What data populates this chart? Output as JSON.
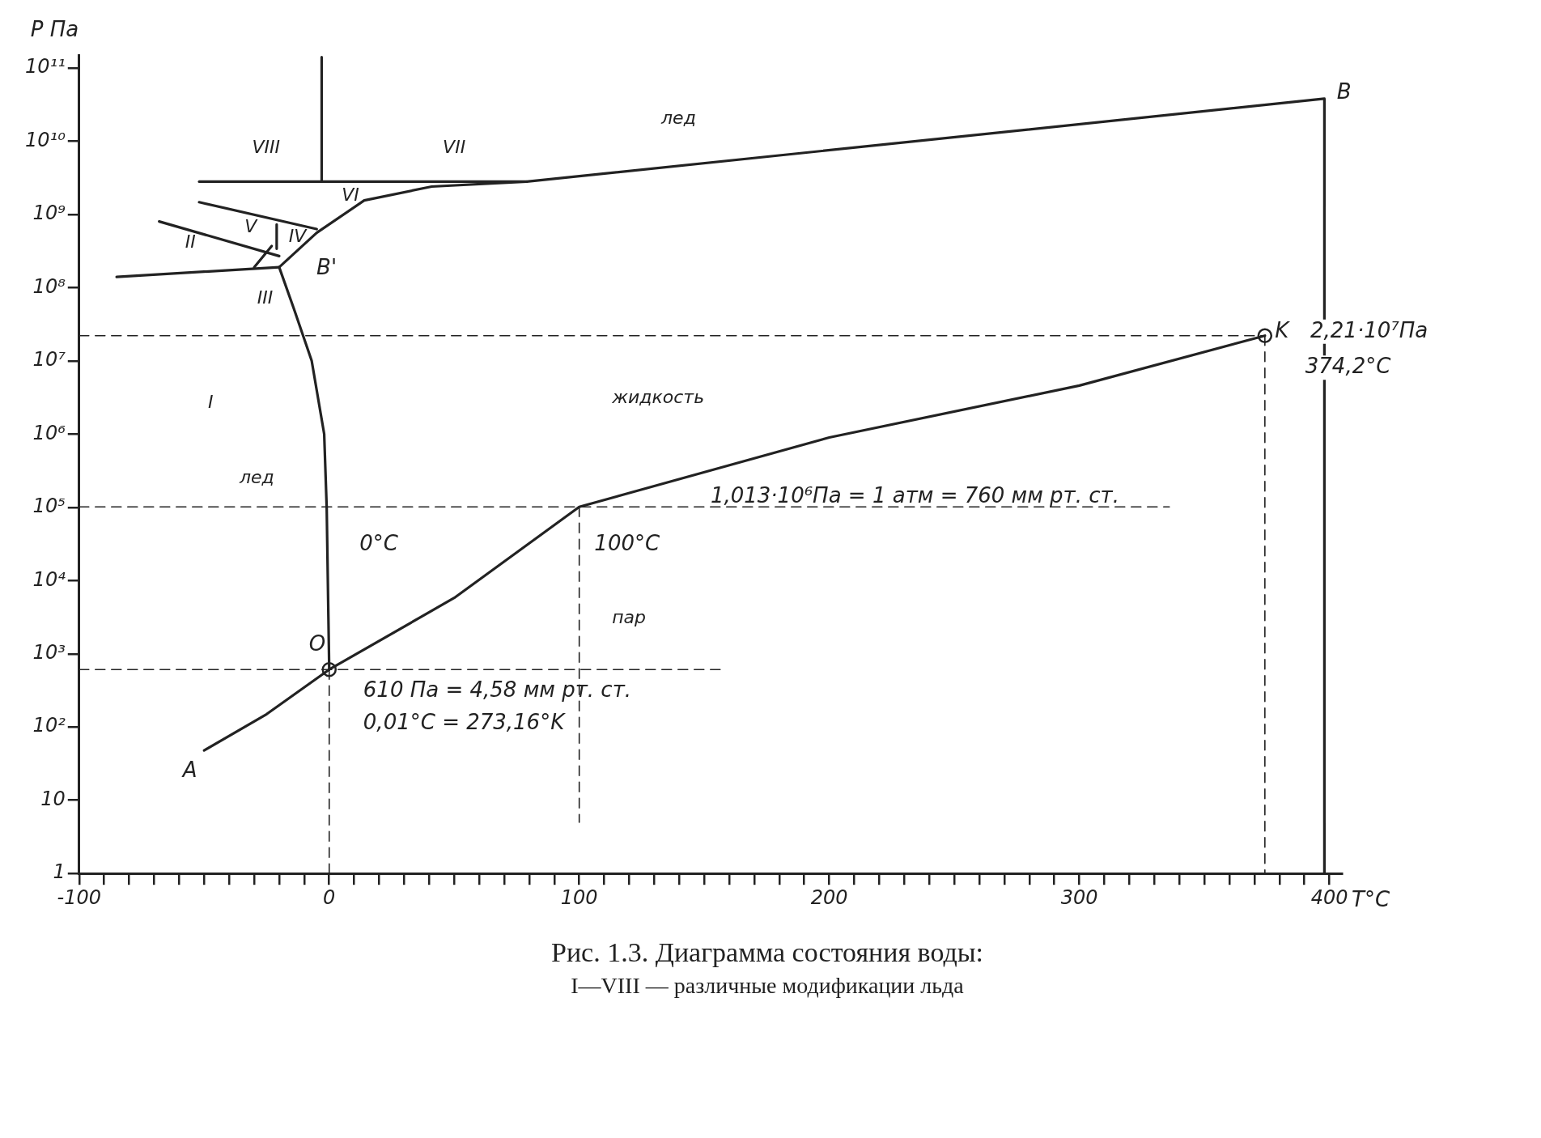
{
  "chart_data": {
    "type": "line",
    "title": "Рис. 1.3. Диаграмма состояния воды:",
    "subtitle": "I—VIII — различные модификации льда",
    "xlabel": "T°C",
    "ylabel": "P Па",
    "log": "y",
    "grid": false,
    "legend": false,
    "xlim": [
      -100,
      405
    ],
    "ylim": [
      1,
      150000000000
    ],
    "xticks": [
      -100,
      {
        "value": -90,
        "label": null
      },
      {
        "value": -80,
        "label": null
      },
      {
        "value": -70,
        "label": null
      },
      {
        "value": -60,
        "label": null
      },
      {
        "value": -50,
        "label": null
      },
      {
        "value": -40,
        "label": null
      },
      {
        "value": -30,
        "label": null
      },
      {
        "value": -20,
        "label": null
      },
      {
        "value": -10,
        "label": null
      },
      0,
      {
        "value": 10,
        "label": null
      },
      {
        "value": 20,
        "label": null
      },
      {
        "value": 30,
        "label": null
      },
      {
        "value": 40,
        "label": null
      },
      {
        "value": 50,
        "label": null
      },
      {
        "value": 60,
        "label": null
      },
      {
        "value": 70,
        "label": null
      },
      {
        "value": 80,
        "label": null
      },
      {
        "value": 90,
        "label": null
      },
      100,
      {
        "value": 110,
        "label": null
      },
      {
        "value": 120,
        "label": null
      },
      {
        "value": 130,
        "label": null
      },
      {
        "value": 140,
        "label": null
      },
      {
        "value": 150,
        "label": null
      },
      {
        "value": 160,
        "label": null
      },
      {
        "value": 170,
        "label": null
      },
      {
        "value": 180,
        "label": null
      },
      {
        "value": 190,
        "label": null
      },
      200,
      {
        "value": 210,
        "label": null
      },
      {
        "value": 220,
        "label": null
      },
      {
        "value": 230,
        "label": null
      },
      {
        "value": 240,
        "label": null
      },
      {
        "value": 250,
        "label": null
      },
      {
        "value": 260,
        "label": null
      },
      {
        "value": 270,
        "label": null
      },
      {
        "value": 280,
        "label": null
      },
      {
        "value": 290,
        "label": null
      },
      300,
      {
        "value": 310,
        "label": null
      },
      {
        "value": 320,
        "label": null
      },
      {
        "value": 330,
        "label": null
      },
      {
        "value": 340,
        "label": null
      },
      {
        "value": 350,
        "label": null
      },
      {
        "value": 360,
        "label": null
      },
      {
        "value": 370,
        "label": null
      },
      {
        "value": 380,
        "label": null
      },
      {
        "value": 390,
        "label": null
      },
      400
    ],
    "yticks": [
      1,
      10,
      {
        "value": 100,
        "label": "10²"
      },
      {
        "value": 1000,
        "label": "10³"
      },
      {
        "value": 10000,
        "label": "10⁴"
      },
      {
        "value": 100000,
        "label": "10⁵"
      },
      {
        "value": 1000000,
        "label": "10⁶"
      },
      {
        "value": 10000000,
        "label": "10⁷"
      },
      {
        "value": 100000000,
        "label": "10⁸"
      },
      {
        "value": 1000000000,
        "label": "10⁹"
      },
      {
        "value": 10000000000,
        "label": "10¹⁰"
      },
      {
        "value": 100000000000,
        "label": "10¹¹"
      }
    ],
    "series": [
      {
        "type": "line",
        "color": "#222222",
        "x": [
          -50,
          -25,
          0.01
        ],
        "values": [
          48,
          150,
          610
        ]
      },
      {
        "type": "line",
        "color": "#222222",
        "x": [
          0.01,
          50,
          100,
          200,
          300,
          374.2
        ],
        "values": [
          610,
          5800,
          101300,
          900000,
          4600000,
          22100000
        ]
      },
      {
        "type": "line",
        "color": "#222222",
        "x": [
          0.01,
          -1,
          -2,
          -7,
          -14,
          -20
        ],
        "values": [
          610,
          100000,
          1000000,
          10000000,
          50000000,
          190000000
        ]
      },
      {
        "type": "line",
        "color": "#222222",
        "x": [
          -20,
          -5,
          14,
          41,
          79,
          398,
          398
        ],
        "values": [
          190000000,
          560000000,
          1550000000,
          2400000000,
          2800000000,
          38000000000,
          1
        ]
      },
      {
        "type": "line",
        "color": "#222222",
        "x": [
          -52,
          79
        ],
        "values": [
          2800000000,
          2800000000
        ]
      },
      {
        "type": "line",
        "color": "#222222",
        "x": [
          -3,
          -3
        ],
        "values": [
          2800000000,
          140000000000
        ]
      },
      {
        "type": "line",
        "color": "#222222",
        "x": [
          -52,
          -5
        ],
        "values": [
          1470000000,
          630000000
        ]
      },
      {
        "type": "line",
        "color": "#222222",
        "x": [
          -68,
          -20
        ],
        "values": [
          800000000,
          270000000
        ]
      },
      {
        "type": "line",
        "color": "#222222",
        "x": [
          -85,
          -20
        ],
        "values": [
          140000000,
          190000000
        ]
      },
      {
        "type": "line",
        "color": "#222222",
        "x": [
          -30,
          -23
        ],
        "values": [
          190000000,
          370000000
        ]
      },
      {
        "type": "line",
        "color": "#222222",
        "x": [
          -21,
          -21
        ],
        "values": [
          730000000,
          340000000
        ]
      },
      {
        "type": "line",
        "color": "#222222",
        "line_style": "dashed",
        "x": [
          -100,
          157
        ],
        "values": [
          610,
          610
        ]
      },
      {
        "type": "line",
        "color": "#222222",
        "line_style": "dashed",
        "x": [
          0.01,
          0.01
        ],
        "values": [
          1,
          610
        ]
      },
      {
        "type": "line",
        "color": "#222222",
        "line_style": "dashed",
        "x": [
          -100,
          336
        ],
        "values": [
          101300,
          101300
        ]
      },
      {
        "type": "line",
        "color": "#222222",
        "line_style": "dashed",
        "x": [
          100,
          100
        ],
        "values": [
          101300,
          5
        ]
      },
      {
        "type": "line",
        "color": "#222222",
        "line_style": "dashed",
        "x": [
          -100,
          374.2
        ],
        "values": [
          22100000,
          22100000
        ]
      },
      {
        "type": "line",
        "color": "#222222",
        "line_style": "dashed",
        "x": [
          374.2,
          374.2
        ],
        "values": [
          22100000,
          1
        ]
      },
      {
        "type": "scatter",
        "color": "#222222",
        "marker": "circle",
        "x": [
          0.01,
          374.2
        ],
        "values": [
          610,
          22100000
        ]
      }
    ],
    "annotations": [
      "лед",
      "VIII",
      "VII",
      "VI",
      "V",
      "IV",
      "II",
      "III",
      "I",
      "лед",
      "жидкость",
      "пар",
      "B'",
      "B",
      "0°C",
      "100°C",
      "O",
      "A",
      "1,013·10⁶Па = 1 атм = 760 мм рт. ст.",
      "610 Па = 4,58 мм рт. ст.",
      "0,01°C = 273,16°K",
      "K",
      "2,21·10⁷Па",
      "374,2°C"
    ]
  }
}
